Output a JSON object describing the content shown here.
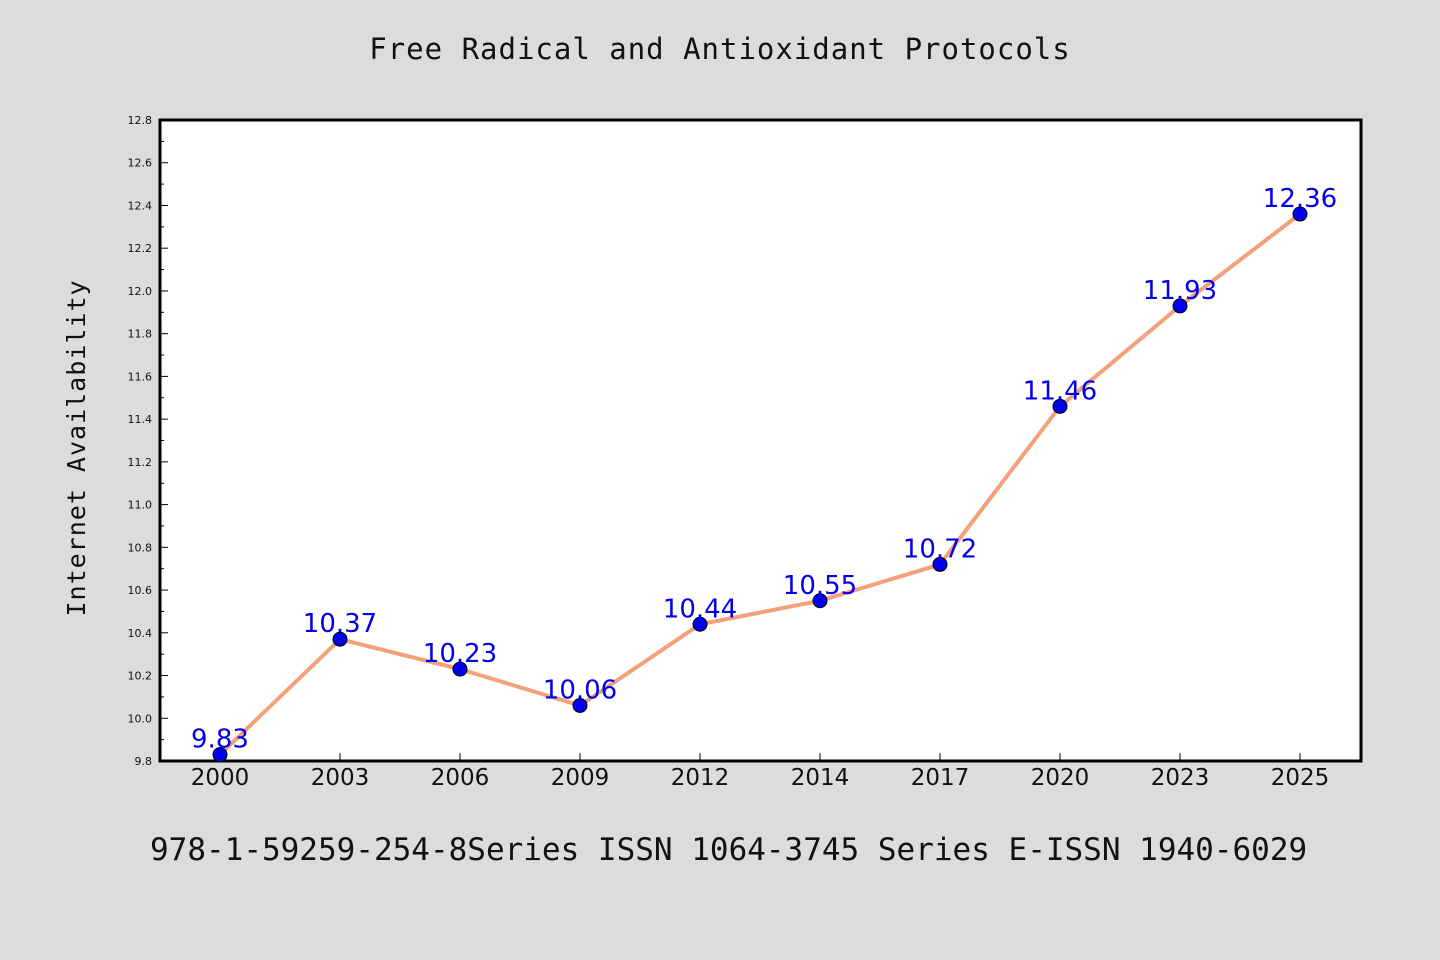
{
  "chart_data": {
    "type": "line",
    "title": "Free Radical and Antioxidant Protocols",
    "xlabel": "",
    "ylabel": "Internet Availability",
    "categories": [
      "2000",
      "2003",
      "2006",
      "2009",
      "2012",
      "2014",
      "2017",
      "2020",
      "2023",
      "2025"
    ],
    "values": [
      9.83,
      10.37,
      10.23,
      10.06,
      10.44,
      10.55,
      10.72,
      11.46,
      11.93,
      12.36
    ],
    "ylim": [
      9.8,
      12.8
    ],
    "yticks": [
      "9.8",
      "10.0",
      "10.2",
      "10.4",
      "10.6",
      "10.8",
      "11.0",
      "11.2",
      "11.4",
      "11.6",
      "11.8",
      "12.0",
      "12.2",
      "12.4",
      "12.6",
      "12.8"
    ],
    "data_labels": [
      "9.83",
      "10.37",
      "10.23",
      "10.06",
      "10.44",
      "10.55",
      "10.72",
      "11.46",
      "11.93",
      "12.36"
    ],
    "grid": false,
    "colors": {
      "line": "#f4a07a",
      "marker": "#0000ee",
      "label": "#0000ee",
      "background": "#dcdcdc",
      "plot_background": "#ffffff"
    }
  },
  "footer": "978-1-59259-254-8Series ISSN 1064-3745 Series E-ISSN 1940-6029"
}
